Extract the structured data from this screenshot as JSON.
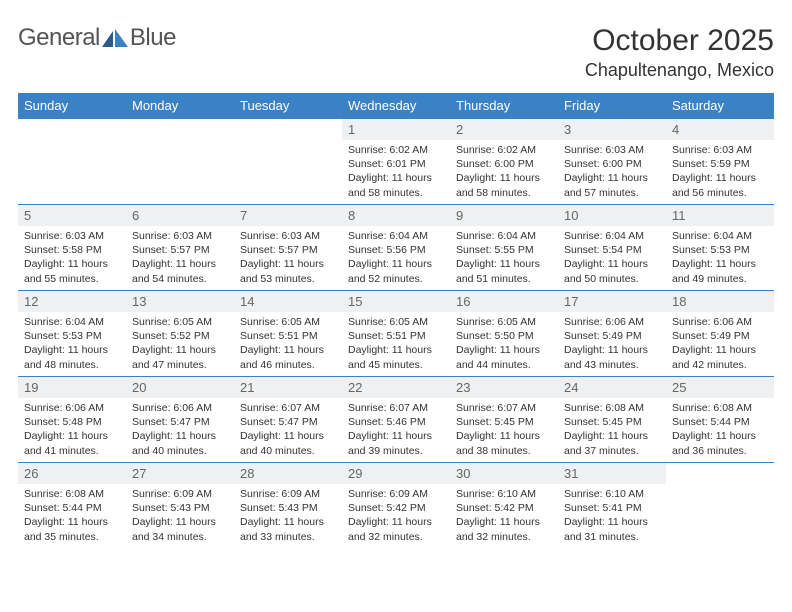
{
  "logo": {
    "text1": "General",
    "text2": "Blue"
  },
  "header": {
    "title": "October 2025",
    "location": "Chapultenango, Mexico"
  },
  "colors": {
    "header_bg": "#3b82c4",
    "header_text": "#ffffff",
    "border": "#3b7fc4",
    "daynum_bg": "#eef0f1",
    "daynum_text": "#666666",
    "body_text": "#333333",
    "page_bg": "#ffffff",
    "logo_gray": "#555555",
    "logo_blue": "#3b7fc4"
  },
  "weekdays": [
    "Sunday",
    "Monday",
    "Tuesday",
    "Wednesday",
    "Thursday",
    "Friday",
    "Saturday"
  ],
  "weeks": [
    [
      {
        "day": "",
        "sunrise": "",
        "sunset": "",
        "daylight1": "",
        "daylight2": "",
        "empty": true
      },
      {
        "day": "",
        "sunrise": "",
        "sunset": "",
        "daylight1": "",
        "daylight2": "",
        "empty": true
      },
      {
        "day": "",
        "sunrise": "",
        "sunset": "",
        "daylight1": "",
        "daylight2": "",
        "empty": true
      },
      {
        "day": "1",
        "sunrise": "Sunrise: 6:02 AM",
        "sunset": "Sunset: 6:01 PM",
        "daylight1": "Daylight: 11 hours",
        "daylight2": "and 58 minutes."
      },
      {
        "day": "2",
        "sunrise": "Sunrise: 6:02 AM",
        "sunset": "Sunset: 6:00 PM",
        "daylight1": "Daylight: 11 hours",
        "daylight2": "and 58 minutes."
      },
      {
        "day": "3",
        "sunrise": "Sunrise: 6:03 AM",
        "sunset": "Sunset: 6:00 PM",
        "daylight1": "Daylight: 11 hours",
        "daylight2": "and 57 minutes."
      },
      {
        "day": "4",
        "sunrise": "Sunrise: 6:03 AM",
        "sunset": "Sunset: 5:59 PM",
        "daylight1": "Daylight: 11 hours",
        "daylight2": "and 56 minutes."
      }
    ],
    [
      {
        "day": "5",
        "sunrise": "Sunrise: 6:03 AM",
        "sunset": "Sunset: 5:58 PM",
        "daylight1": "Daylight: 11 hours",
        "daylight2": "and 55 minutes."
      },
      {
        "day": "6",
        "sunrise": "Sunrise: 6:03 AM",
        "sunset": "Sunset: 5:57 PM",
        "daylight1": "Daylight: 11 hours",
        "daylight2": "and 54 minutes."
      },
      {
        "day": "7",
        "sunrise": "Sunrise: 6:03 AM",
        "sunset": "Sunset: 5:57 PM",
        "daylight1": "Daylight: 11 hours",
        "daylight2": "and 53 minutes."
      },
      {
        "day": "8",
        "sunrise": "Sunrise: 6:04 AM",
        "sunset": "Sunset: 5:56 PM",
        "daylight1": "Daylight: 11 hours",
        "daylight2": "and 52 minutes."
      },
      {
        "day": "9",
        "sunrise": "Sunrise: 6:04 AM",
        "sunset": "Sunset: 5:55 PM",
        "daylight1": "Daylight: 11 hours",
        "daylight2": "and 51 minutes."
      },
      {
        "day": "10",
        "sunrise": "Sunrise: 6:04 AM",
        "sunset": "Sunset: 5:54 PM",
        "daylight1": "Daylight: 11 hours",
        "daylight2": "and 50 minutes."
      },
      {
        "day": "11",
        "sunrise": "Sunrise: 6:04 AM",
        "sunset": "Sunset: 5:53 PM",
        "daylight1": "Daylight: 11 hours",
        "daylight2": "and 49 minutes."
      }
    ],
    [
      {
        "day": "12",
        "sunrise": "Sunrise: 6:04 AM",
        "sunset": "Sunset: 5:53 PM",
        "daylight1": "Daylight: 11 hours",
        "daylight2": "and 48 minutes."
      },
      {
        "day": "13",
        "sunrise": "Sunrise: 6:05 AM",
        "sunset": "Sunset: 5:52 PM",
        "daylight1": "Daylight: 11 hours",
        "daylight2": "and 47 minutes."
      },
      {
        "day": "14",
        "sunrise": "Sunrise: 6:05 AM",
        "sunset": "Sunset: 5:51 PM",
        "daylight1": "Daylight: 11 hours",
        "daylight2": "and 46 minutes."
      },
      {
        "day": "15",
        "sunrise": "Sunrise: 6:05 AM",
        "sunset": "Sunset: 5:51 PM",
        "daylight1": "Daylight: 11 hours",
        "daylight2": "and 45 minutes."
      },
      {
        "day": "16",
        "sunrise": "Sunrise: 6:05 AM",
        "sunset": "Sunset: 5:50 PM",
        "daylight1": "Daylight: 11 hours",
        "daylight2": "and 44 minutes."
      },
      {
        "day": "17",
        "sunrise": "Sunrise: 6:06 AM",
        "sunset": "Sunset: 5:49 PM",
        "daylight1": "Daylight: 11 hours",
        "daylight2": "and 43 minutes."
      },
      {
        "day": "18",
        "sunrise": "Sunrise: 6:06 AM",
        "sunset": "Sunset: 5:49 PM",
        "daylight1": "Daylight: 11 hours",
        "daylight2": "and 42 minutes."
      }
    ],
    [
      {
        "day": "19",
        "sunrise": "Sunrise: 6:06 AM",
        "sunset": "Sunset: 5:48 PM",
        "daylight1": "Daylight: 11 hours",
        "daylight2": "and 41 minutes."
      },
      {
        "day": "20",
        "sunrise": "Sunrise: 6:06 AM",
        "sunset": "Sunset: 5:47 PM",
        "daylight1": "Daylight: 11 hours",
        "daylight2": "and 40 minutes."
      },
      {
        "day": "21",
        "sunrise": "Sunrise: 6:07 AM",
        "sunset": "Sunset: 5:47 PM",
        "daylight1": "Daylight: 11 hours",
        "daylight2": "and 40 minutes."
      },
      {
        "day": "22",
        "sunrise": "Sunrise: 6:07 AM",
        "sunset": "Sunset: 5:46 PM",
        "daylight1": "Daylight: 11 hours",
        "daylight2": "and 39 minutes."
      },
      {
        "day": "23",
        "sunrise": "Sunrise: 6:07 AM",
        "sunset": "Sunset: 5:45 PM",
        "daylight1": "Daylight: 11 hours",
        "daylight2": "and 38 minutes."
      },
      {
        "day": "24",
        "sunrise": "Sunrise: 6:08 AM",
        "sunset": "Sunset: 5:45 PM",
        "daylight1": "Daylight: 11 hours",
        "daylight2": "and 37 minutes."
      },
      {
        "day": "25",
        "sunrise": "Sunrise: 6:08 AM",
        "sunset": "Sunset: 5:44 PM",
        "daylight1": "Daylight: 11 hours",
        "daylight2": "and 36 minutes."
      }
    ],
    [
      {
        "day": "26",
        "sunrise": "Sunrise: 6:08 AM",
        "sunset": "Sunset: 5:44 PM",
        "daylight1": "Daylight: 11 hours",
        "daylight2": "and 35 minutes."
      },
      {
        "day": "27",
        "sunrise": "Sunrise: 6:09 AM",
        "sunset": "Sunset: 5:43 PM",
        "daylight1": "Daylight: 11 hours",
        "daylight2": "and 34 minutes."
      },
      {
        "day": "28",
        "sunrise": "Sunrise: 6:09 AM",
        "sunset": "Sunset: 5:43 PM",
        "daylight1": "Daylight: 11 hours",
        "daylight2": "and 33 minutes."
      },
      {
        "day": "29",
        "sunrise": "Sunrise: 6:09 AM",
        "sunset": "Sunset: 5:42 PM",
        "daylight1": "Daylight: 11 hours",
        "daylight2": "and 32 minutes."
      },
      {
        "day": "30",
        "sunrise": "Sunrise: 6:10 AM",
        "sunset": "Sunset: 5:42 PM",
        "daylight1": "Daylight: 11 hours",
        "daylight2": "and 32 minutes."
      },
      {
        "day": "31",
        "sunrise": "Sunrise: 6:10 AM",
        "sunset": "Sunset: 5:41 PM",
        "daylight1": "Daylight: 11 hours",
        "daylight2": "and 31 minutes."
      },
      {
        "day": "",
        "sunrise": "",
        "sunset": "",
        "daylight1": "",
        "daylight2": "",
        "empty": true
      }
    ]
  ]
}
